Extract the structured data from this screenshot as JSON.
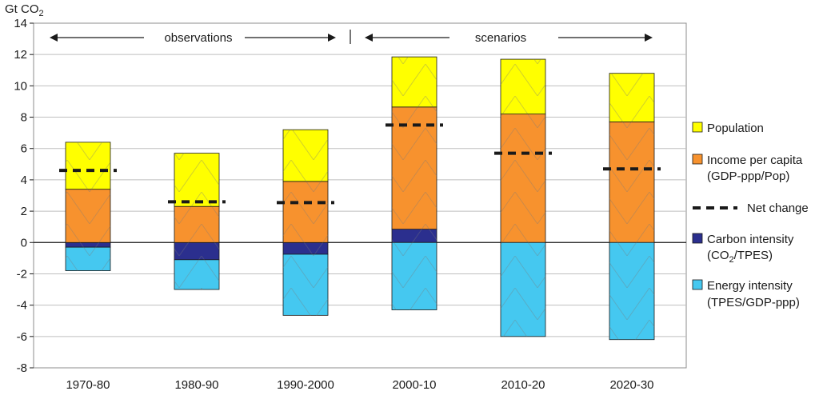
{
  "chart_data": {
    "type": "bar",
    "stacked": true,
    "ylabel": "Gt CO",
    "ylabel_sub": "2",
    "ylim": [
      -8,
      14
    ],
    "yticks": [
      "14",
      "12",
      "10",
      "8",
      "6",
      "4",
      "2",
      "0",
      "-2",
      "-4",
      "-6",
      "-8"
    ],
    "categories": [
      "1970-80",
      "1980-90",
      "1990-2000",
      "2000-10",
      "2010-20",
      "2020-30"
    ],
    "series": [
      {
        "name": "Population",
        "values": [
          3.0,
          3.4,
          3.3,
          3.2,
          3.5,
          3.1
        ]
      },
      {
        "name": "Income per capita (GDP-ppp/Pop)",
        "values": [
          3.4,
          2.3,
          3.9,
          7.8,
          8.2,
          7.7
        ]
      },
      {
        "name": "Carbon intensity (CO2/TPES)",
        "values": [
          -0.3,
          -1.1,
          -0.75,
          0.85,
          0.0,
          0.0
        ]
      },
      {
        "name": "Energy intensity (TPES/GDP-ppp)",
        "values": [
          -1.5,
          -1.9,
          -3.9,
          -4.3,
          -6.0,
          -6.2
        ]
      }
    ],
    "net_change": {
      "name": "Net change",
      "values": [
        4.6,
        2.6,
        2.55,
        7.5,
        5.7,
        4.7
      ]
    },
    "annotations": {
      "observations": "observations",
      "scenarios": "scenarios"
    },
    "legend_position": "right",
    "grid": true,
    "colors": {
      "population": "#ffff00",
      "income": "#f7922e",
      "carbon": "#2b2f8e",
      "energy": "#45c8f0",
      "net": "#1a1a1a",
      "grid": "#bfbfbf"
    },
    "legend": {
      "population": [
        "Population"
      ],
      "income": [
        "Income per capita",
        "(GDP-ppp/Pop)"
      ],
      "net": [
        "Net change"
      ],
      "carbon_line1": "Carbon intensity",
      "carbon_line2_pre": "(CO",
      "carbon_line2_sub": "2",
      "carbon_line2_post": "/TPES)",
      "energy": [
        "Energy intensity",
        "(TPES/GDP-ppp)"
      ]
    }
  }
}
